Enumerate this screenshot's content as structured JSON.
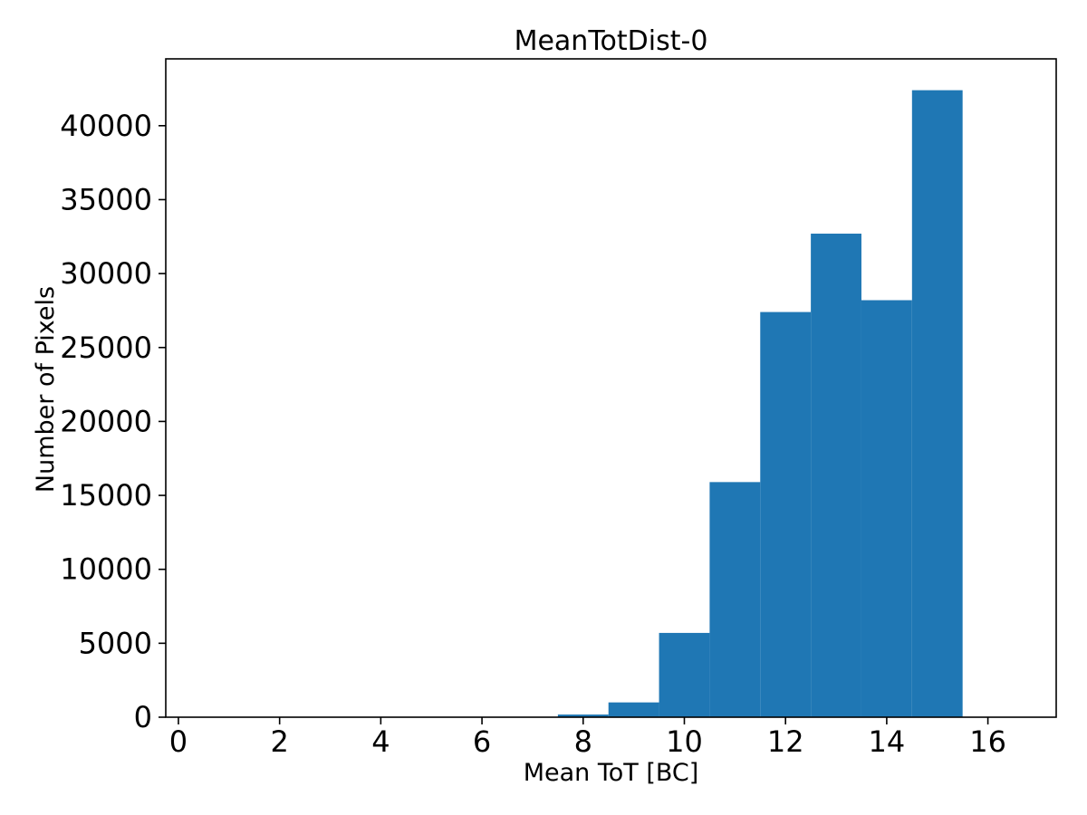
{
  "chart_data": {
    "type": "bar",
    "subtype": "histogram",
    "title": "MeanTotDist-0",
    "xlabel": "Mean ToT [BC]",
    "ylabel": "Number of Pixels",
    "bar_color": "#1f77b4",
    "axis_color": "#000000",
    "background_color": "#ffffff",
    "grid": false,
    "legend": null,
    "bin_width": 1,
    "bin_centers": [
      8,
      9,
      10,
      11,
      12,
      13,
      14,
      15
    ],
    "counts": [
      180,
      1000,
      5700,
      15900,
      27400,
      32700,
      28200,
      42400
    ],
    "xlim": [
      -0.25,
      17.35
    ],
    "ylim": [
      0,
      44520
    ],
    "xticks": [
      0,
      2,
      4,
      6,
      8,
      10,
      12,
      14,
      16
    ],
    "yticks": [
      0,
      5000,
      10000,
      15000,
      20000,
      25000,
      30000,
      35000,
      40000
    ]
  }
}
